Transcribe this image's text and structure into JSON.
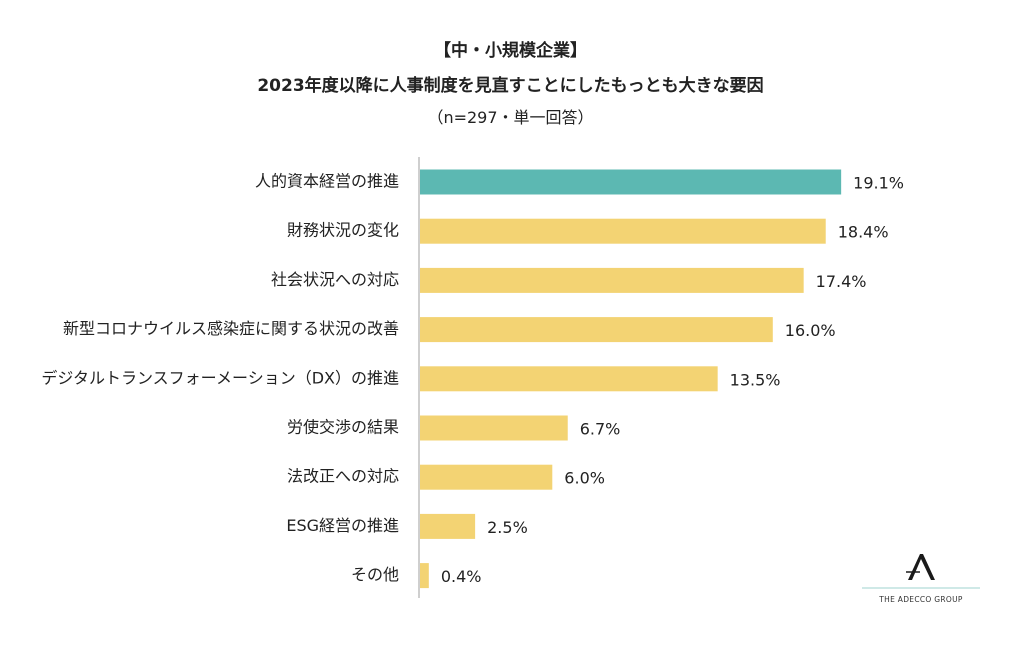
{
  "title_line1": "【中・小規模企業】",
  "title_line2": "2023年度以降に人事制度を見直すことにしたもっとも大きな要因",
  "subtitle": "（n=297・単一回答）",
  "logo_text": "THE ADECCO GROUP",
  "chart_data": {
    "type": "bar",
    "orientation": "horizontal",
    "title": "2023年度以降に人事制度を見直すことにしたもっとも大きな要因",
    "categories": [
      "人的資本経営の推進",
      "財務状況の変化",
      "社会状況への対応",
      "新型コロナウイルス感染症に関する状況の改善",
      "デジタルトランスフォーメーション（DX）の推進",
      "労使交渉の結果",
      "法改正への対応",
      "ESG経営の推進",
      "その他"
    ],
    "values": [
      19.1,
      18.4,
      17.4,
      16.0,
      13.5,
      6.7,
      6.0,
      2.5,
      0.4
    ],
    "value_labels": [
      "19.1%",
      "18.4%",
      "17.4%",
      "16.0%",
      "13.5%",
      "6.7%",
      "6.0%",
      "2.5%",
      "0.4%"
    ],
    "xlim": [
      0,
      20
    ],
    "grid": false,
    "legend": "none",
    "colors": {
      "highlight": "#5cb8b2",
      "default": "#f3d373",
      "axis": "#bfbfbf"
    },
    "highlight_index": 0
  }
}
